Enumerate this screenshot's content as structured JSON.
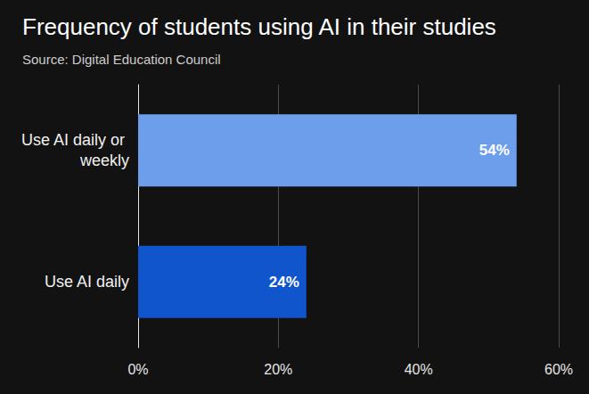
{
  "chart_data": {
    "type": "bar",
    "title": "Frequency of students using AI in their studies",
    "subtitle": "Source: Digital Education Council",
    "orientation": "horizontal",
    "categories": [
      "Use AI daily or weekly",
      "Use AI daily"
    ],
    "values": [
      54,
      24
    ],
    "value_labels": [
      "54%",
      "24%"
    ],
    "colors": [
      "#6d9eeb",
      "#1155cc"
    ],
    "xlim": [
      0,
      60
    ],
    "xticks": [
      {
        "value": 0,
        "label": "0%"
      },
      {
        "value": 20,
        "label": "20%"
      },
      {
        "value": 40,
        "label": "40%"
      },
      {
        "value": 60,
        "label": "60%"
      }
    ],
    "grid": true,
    "data_labels": true
  }
}
